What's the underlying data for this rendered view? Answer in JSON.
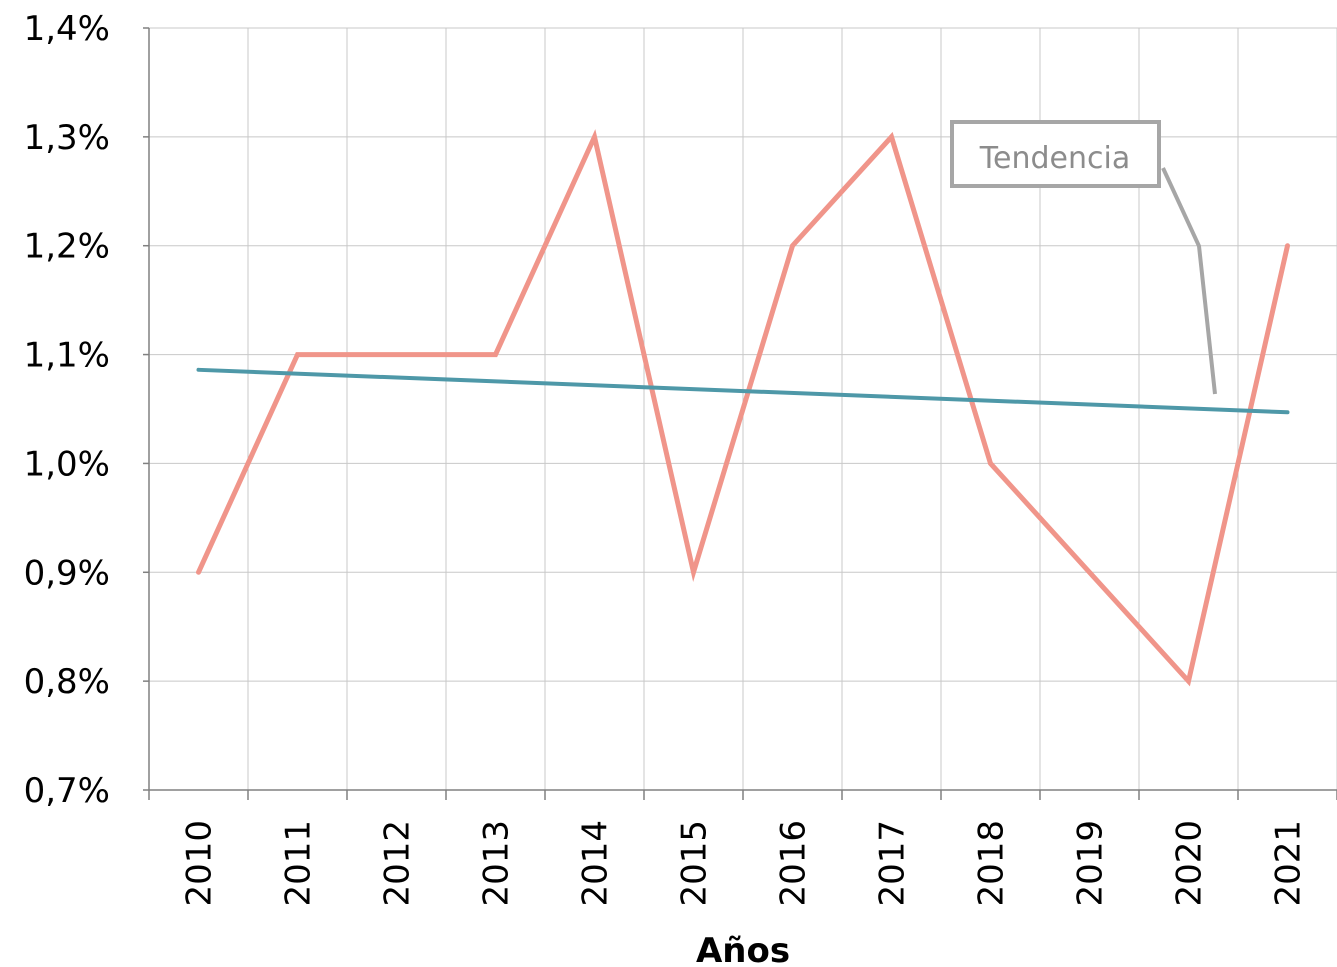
{
  "chart_data": {
    "type": "line",
    "categories": [
      "2010",
      "2011",
      "2012",
      "2013",
      "2014",
      "2015",
      "2016",
      "2017",
      "2018",
      "2019",
      "2020",
      "2021"
    ],
    "series": [
      {
        "values": [
          0.9,
          1.1,
          1.1,
          1.1,
          1.3,
          0.9,
          1.2,
          1.3,
          1.0,
          0.9,
          0.8,
          1.2
        ],
        "color": "#f0958a"
      },
      {
        "name": "Tendencia",
        "trend": [
          1.086,
          1.047
        ],
        "color": "#4e98a8"
      }
    ],
    "xlabel": "Años",
    "ylabel": "",
    "ylim": [
      0.7,
      1.4
    ],
    "y_ticks": [
      "0,7%",
      "0,8%",
      "0,9%",
      "1,0%",
      "1,1%",
      "1,2%",
      "1,3%",
      "1,4%"
    ],
    "grid": true,
    "annotation": {
      "text": "Tendencia",
      "color": "#a6a6a6"
    }
  }
}
